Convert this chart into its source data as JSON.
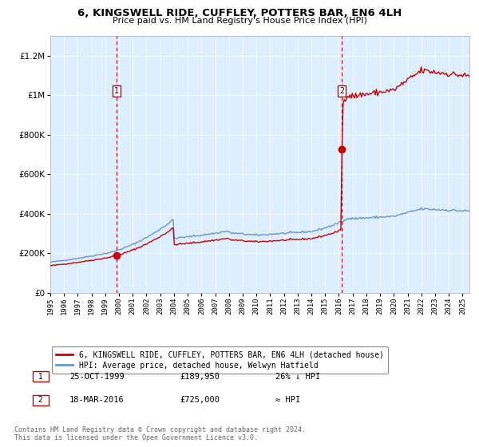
{
  "title1": "6, KINGSWELL RIDE, CUFFLEY, POTTERS BAR, EN6 4LH",
  "title2": "Price paid vs. HM Land Registry's House Price Index (HPI)",
  "legend_line1": "6, KINGSWELL RIDE, CUFFLEY, POTTERS BAR, EN6 4LH (detached house)",
  "legend_line2": "HPI: Average price, detached house, Welwyn Hatfield",
  "annotation1_label": "1",
  "annotation1_date": "25-OCT-1999",
  "annotation1_price": "£189,950",
  "annotation1_note": "26% ↓ HPI",
  "annotation2_label": "2",
  "annotation2_date": "18-MAR-2016",
  "annotation2_price": "£725,000",
  "annotation2_note": "≈ HPI",
  "footer": "Contains HM Land Registry data © Crown copyright and database right 2024.\nThis data is licensed under the Open Government Licence v3.0.",
  "hpi_color": "#6699cc",
  "price_color": "#cc0000",
  "bg_color": "#ddeeff",
  "point1_year": 1999.83,
  "point1_value": 189950,
  "point2_year": 2016.22,
  "point2_value": 725000,
  "vline1_year": 1999.83,
  "vline2_year": 2016.22,
  "ylim_max": 1300000,
  "xlim_start": 1995.0,
  "xlim_end": 2025.5
}
